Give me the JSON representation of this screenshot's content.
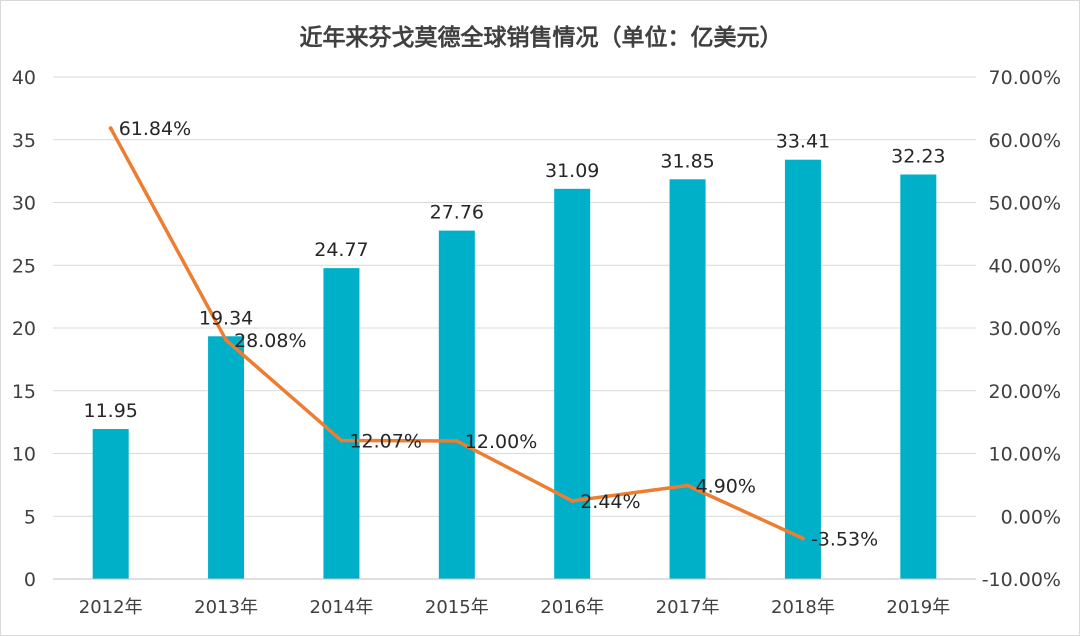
{
  "chart_data": {
    "type": "bar",
    "title": "近年来芬戈莫德全球销售情况（单位：亿美元）",
    "categories": [
      "2012年",
      "2013年",
      "2014年",
      "2015年",
      "2016年",
      "2017年",
      "2018年",
      "2019年"
    ],
    "series": [
      {
        "kind": "bar",
        "axis": "left",
        "color": "#00B0C8",
        "values": [
          11.95,
          19.34,
          24.77,
          27.76,
          31.09,
          31.85,
          33.41,
          32.23
        ],
        "labels": [
          "11.95",
          "19.34",
          "24.77",
          "27.76",
          "31.09",
          "31.85",
          "33.41",
          "32.23"
        ]
      },
      {
        "kind": "line",
        "axis": "right",
        "color": "#ED7D31",
        "values": [
          61.84,
          28.08,
          12.07,
          12.0,
          2.44,
          4.9,
          -3.53,
          null
        ],
        "labels": [
          "61.84%",
          "28.08%",
          "12.07%",
          "12.00%",
          "2.44%",
          "4.90%",
          "-3.53%",
          null
        ]
      }
    ],
    "y_left": {
      "range": [
        0,
        40
      ],
      "ticks": [
        0,
        5,
        10,
        15,
        20,
        25,
        30,
        35,
        40
      ],
      "tick_labels": [
        "0",
        "5",
        "10",
        "15",
        "20",
        "25",
        "30",
        "35",
        "40"
      ]
    },
    "y_right": {
      "range": [
        -10,
        70
      ],
      "ticks": [
        -10,
        0,
        10,
        20,
        30,
        40,
        50,
        60,
        70
      ],
      "tick_labels": [
        "-10.00%",
        "0.00%",
        "10.00%",
        "20.00%",
        "30.00%",
        "40.00%",
        "50.00%",
        "60.00%",
        "70.00%"
      ]
    },
    "grid": true,
    "legend": "none"
  }
}
